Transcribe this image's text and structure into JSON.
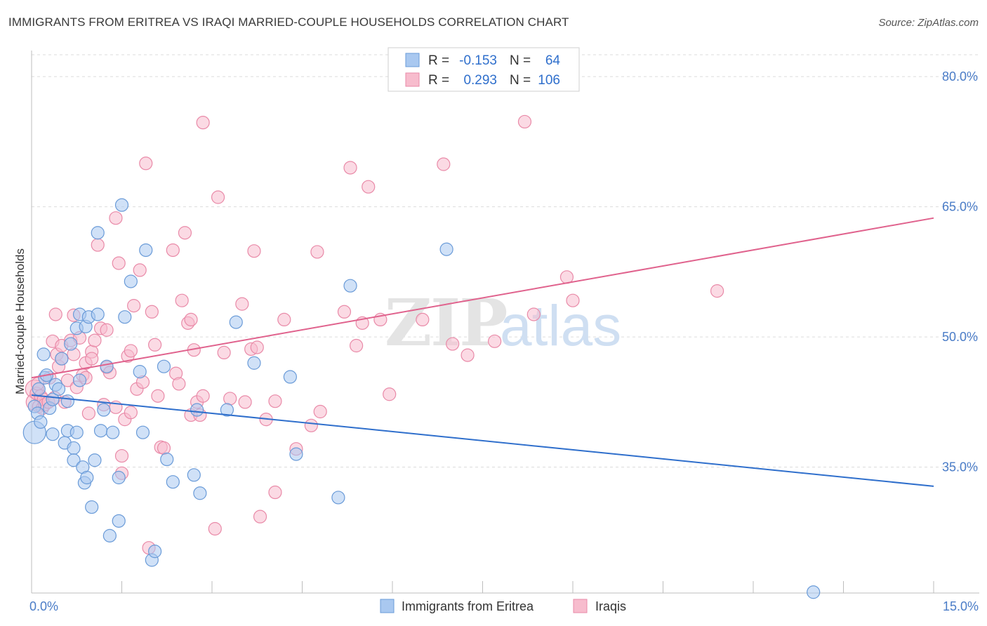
{
  "header": {
    "title": "IMMIGRANTS FROM ERITREA VS IRAQI MARRIED-COUPLE HOUSEHOLDS CORRELATION CHART",
    "source": "Source: ZipAtlas.com"
  },
  "watermark": {
    "zip": "ZIP",
    "atlas": "atlas"
  },
  "colors": {
    "blue_fill": "#a9c8f0",
    "blue_stroke": "#6a9bd8",
    "blue_line": "#2f6fcc",
    "pink_fill": "#f7bccd",
    "pink_stroke": "#e98aa8",
    "pink_line": "#e0628d",
    "axis_label": "#4a7cc7",
    "grid": "#dcdcdc"
  },
  "legend": {
    "rows": [
      {
        "r_label": "R =",
        "r_value": "-0.153",
        "n_label": "N =",
        "n_value": "64"
      },
      {
        "r_label": "R =",
        "r_value": "0.293",
        "n_label": "N =",
        "n_value": "106"
      }
    ]
  },
  "bottom_legend": [
    {
      "label": "Immigrants from Eritrea"
    },
    {
      "label": "Iraqis"
    }
  ],
  "chart_data": {
    "type": "scatter",
    "title": "IMMIGRANTS FROM ERITREA VS IRAQI MARRIED-COUPLE HOUSEHOLDS CORRELATION CHART",
    "xlabel": "",
    "ylabel": "Married-couple Households",
    "xlim": [
      0,
      15
    ],
    "ylim": [
      20.5,
      83
    ],
    "x_ticks": [
      0,
      1.5,
      3,
      4.5,
      6,
      7.5,
      9,
      10.5,
      12,
      13.5,
      15
    ],
    "x_tick_labels": {
      "min": "0.0%",
      "max": "15.0%"
    },
    "y_ticks": [
      35,
      50,
      65,
      80
    ],
    "y_tick_labels": [
      "35.0%",
      "50.0%",
      "65.0%",
      "80.0%"
    ],
    "series": [
      {
        "name": "Immigrants from Eritrea",
        "r": -0.153,
        "n": 64,
        "trend": {
          "x": [
            0,
            15
          ],
          "y": [
            43.3,
            32.8
          ]
        },
        "points": [
          [
            0.05,
            39.0,
            16
          ],
          [
            0.05,
            42.0,
            9
          ],
          [
            0.1,
            41.2,
            9
          ],
          [
            0.12,
            44.0,
            9
          ],
          [
            0.15,
            40.2,
            9
          ],
          [
            0.2,
            48.0,
            9
          ],
          [
            0.22,
            45.3,
            9
          ],
          [
            0.25,
            45.6,
            9
          ],
          [
            0.3,
            41.8,
            9
          ],
          [
            0.35,
            42.8,
            9
          ],
          [
            0.35,
            38.8,
            9
          ],
          [
            0.4,
            44.5,
            9
          ],
          [
            0.45,
            44.0,
            9
          ],
          [
            0.5,
            47.5,
            9
          ],
          [
            0.55,
            37.8,
            9
          ],
          [
            0.6,
            39.2,
            9
          ],
          [
            0.6,
            42.6,
            9
          ],
          [
            0.65,
            49.2,
            9
          ],
          [
            0.7,
            37.2,
            9
          ],
          [
            0.7,
            35.8,
            9
          ],
          [
            0.75,
            51.0,
            9
          ],
          [
            0.8,
            52.6,
            9
          ],
          [
            0.75,
            39.0,
            9
          ],
          [
            0.8,
            45.0,
            9
          ],
          [
            0.85,
            35.0,
            9
          ],
          [
            0.88,
            33.2,
            9
          ],
          [
            0.9,
            51.2,
            9
          ],
          [
            0.92,
            33.8,
            9
          ],
          [
            0.95,
            52.3,
            9
          ],
          [
            1.0,
            30.4,
            9
          ],
          [
            1.05,
            35.8,
            9
          ],
          [
            1.1,
            52.6,
            9
          ],
          [
            1.1,
            62.0,
            9
          ],
          [
            1.15,
            39.2,
            9
          ],
          [
            1.2,
            41.6,
            9
          ],
          [
            1.25,
            46.6,
            9
          ],
          [
            1.3,
            27.1,
            9
          ],
          [
            1.35,
            39.0,
            9
          ],
          [
            1.45,
            28.8,
            9
          ],
          [
            1.45,
            33.8,
            9
          ],
          [
            1.5,
            65.2,
            9
          ],
          [
            1.55,
            52.3,
            9
          ],
          [
            1.65,
            56.4,
            9
          ],
          [
            1.8,
            46.0,
            9
          ],
          [
            1.85,
            39.0,
            9
          ],
          [
            1.9,
            60.0,
            9
          ],
          [
            2.0,
            24.3,
            9
          ],
          [
            2.05,
            25.3,
            9
          ],
          [
            2.2,
            46.6,
            9
          ],
          [
            2.25,
            35.9,
            9
          ],
          [
            2.35,
            33.3,
            9
          ],
          [
            2.7,
            34.1,
            9
          ],
          [
            2.75,
            41.6,
            9
          ],
          [
            2.8,
            32.0,
            9
          ],
          [
            3.25,
            41.6,
            9
          ],
          [
            3.4,
            51.7,
            9
          ],
          [
            3.7,
            47.0,
            9
          ],
          [
            4.3,
            45.4,
            9
          ],
          [
            4.4,
            36.5,
            9
          ],
          [
            5.1,
            31.5,
            9
          ],
          [
            5.3,
            55.9,
            9
          ],
          [
            6.9,
            60.1,
            9
          ],
          [
            13.0,
            20.6,
            9
          ]
        ]
      },
      {
        "name": "Iraqis",
        "r": 0.293,
        "n": 106,
        "trend": {
          "x": [
            0,
            15
          ],
          "y": [
            45.3,
            63.7
          ]
        },
        "points": [
          [
            0.05,
            44.0,
            13
          ],
          [
            0.05,
            42.5,
            12
          ],
          [
            0.08,
            43.5,
            9
          ],
          [
            0.1,
            44.6,
            9
          ],
          [
            0.12,
            42.0,
            9
          ],
          [
            0.15,
            43.2,
            9
          ],
          [
            0.18,
            41.8,
            9
          ],
          [
            0.2,
            42.8,
            9
          ],
          [
            0.22,
            42.2,
            9
          ],
          [
            0.28,
            42.5,
            9
          ],
          [
            0.3,
            45.3,
            9
          ],
          [
            0.35,
            49.5,
            9
          ],
          [
            0.38,
            43.0,
            9
          ],
          [
            0.4,
            52.6,
            9
          ],
          [
            0.42,
            48.0,
            9
          ],
          [
            0.45,
            46.6,
            9
          ],
          [
            0.5,
            49.0,
            9
          ],
          [
            0.5,
            47.5,
            9
          ],
          [
            0.55,
            42.5,
            9
          ],
          [
            0.6,
            45.0,
            9
          ],
          [
            0.65,
            49.6,
            9
          ],
          [
            0.7,
            52.5,
            9
          ],
          [
            0.7,
            48.0,
            9
          ],
          [
            0.75,
            44.2,
            9
          ],
          [
            0.8,
            49.9,
            9
          ],
          [
            0.85,
            45.6,
            9
          ],
          [
            0.9,
            47.0,
            9
          ],
          [
            0.9,
            45.3,
            9
          ],
          [
            0.95,
            41.2,
            9
          ],
          [
            1.0,
            48.3,
            9
          ],
          [
            1.0,
            47.5,
            9
          ],
          [
            1.05,
            49.6,
            9
          ],
          [
            1.1,
            60.6,
            9
          ],
          [
            1.15,
            51.0,
            9
          ],
          [
            1.2,
            42.2,
            9
          ],
          [
            1.25,
            50.8,
            9
          ],
          [
            1.25,
            46.5,
            9
          ],
          [
            1.3,
            45.9,
            9
          ],
          [
            1.4,
            63.7,
            9
          ],
          [
            1.4,
            41.9,
            9
          ],
          [
            1.45,
            58.5,
            9
          ],
          [
            1.5,
            34.3,
            9
          ],
          [
            1.5,
            36.3,
            9
          ],
          [
            1.55,
            40.5,
            9
          ],
          [
            1.6,
            47.8,
            9
          ],
          [
            1.65,
            41.3,
            9
          ],
          [
            1.65,
            48.4,
            9
          ],
          [
            1.7,
            53.6,
            9
          ],
          [
            1.75,
            44.0,
            9
          ],
          [
            1.8,
            57.7,
            9
          ],
          [
            1.85,
            44.8,
            9
          ],
          [
            1.9,
            70.0,
            9
          ],
          [
            1.95,
            25.7,
            9
          ],
          [
            2.0,
            52.9,
            9
          ],
          [
            2.05,
            49.1,
            9
          ],
          [
            2.1,
            43.2,
            9
          ],
          [
            2.15,
            37.3,
            9
          ],
          [
            2.2,
            37.2,
            9
          ],
          [
            2.35,
            60.0,
            9
          ],
          [
            2.4,
            45.8,
            9
          ],
          [
            2.45,
            44.6,
            9
          ],
          [
            2.5,
            54.2,
            9
          ],
          [
            2.55,
            62.0,
            9
          ],
          [
            2.6,
            51.6,
            9
          ],
          [
            2.65,
            41.0,
            9
          ],
          [
            2.65,
            52.0,
            9
          ],
          [
            2.7,
            48.5,
            9
          ],
          [
            2.75,
            42.5,
            9
          ],
          [
            2.8,
            41.0,
            9
          ],
          [
            2.85,
            43.2,
            9
          ],
          [
            2.85,
            74.7,
            9
          ],
          [
            3.05,
            27.9,
            9
          ],
          [
            3.1,
            66.1,
            9
          ],
          [
            3.2,
            48.2,
            9
          ],
          [
            3.3,
            42.9,
            9
          ],
          [
            3.5,
            53.8,
            9
          ],
          [
            3.55,
            42.5,
            9
          ],
          [
            3.65,
            48.6,
            9
          ],
          [
            3.7,
            59.9,
            9
          ],
          [
            3.75,
            48.8,
            9
          ],
          [
            3.8,
            29.3,
            9
          ],
          [
            3.9,
            40.5,
            9
          ],
          [
            4.05,
            32.1,
            9
          ],
          [
            4.05,
            42.6,
            9
          ],
          [
            4.2,
            52.0,
            9
          ],
          [
            4.4,
            37.1,
            9
          ],
          [
            4.65,
            39.8,
            9
          ],
          [
            4.75,
            59.8,
            9
          ],
          [
            4.8,
            41.4,
            9
          ],
          [
            5.2,
            52.9,
            9
          ],
          [
            5.3,
            69.5,
            9
          ],
          [
            5.4,
            49.0,
            9
          ],
          [
            5.5,
            51.6,
            9
          ],
          [
            5.6,
            67.3,
            9
          ],
          [
            5.8,
            52.0,
            9
          ],
          [
            5.95,
            43.4,
            9
          ],
          [
            6.5,
            52.0,
            9
          ],
          [
            6.85,
            69.9,
            9
          ],
          [
            7.0,
            49.2,
            9
          ],
          [
            7.25,
            47.9,
            9
          ],
          [
            7.7,
            49.5,
            9
          ],
          [
            8.2,
            74.8,
            9
          ],
          [
            8.35,
            52.6,
            9
          ],
          [
            8.9,
            56.9,
            9
          ],
          [
            9.0,
            54.2,
            9
          ],
          [
            11.4,
            55.3,
            9
          ]
        ]
      }
    ]
  }
}
